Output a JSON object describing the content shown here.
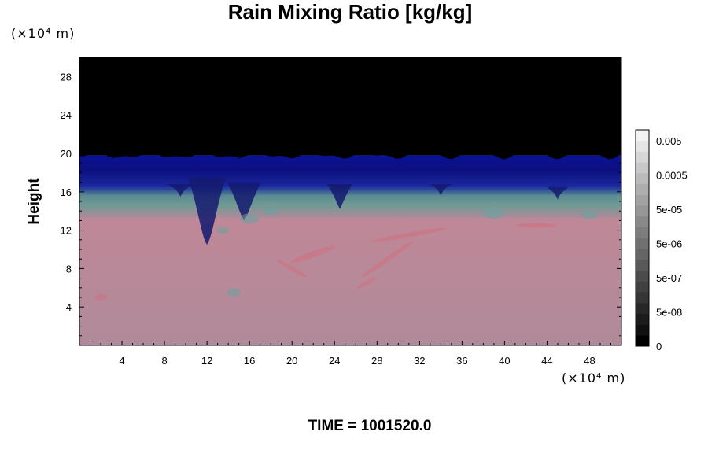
{
  "chart_data": {
    "type": "heatmap",
    "title": "Rain Mixing Ratio [kg/kg]",
    "ylabel": "Height",
    "xlabel": "",
    "x_unit": "(×10⁴ m)",
    "y_unit": "(×10⁴ m)",
    "xlim": [
      0,
      51
    ],
    "ylim": [
      0,
      30
    ],
    "x_ticks": [
      4,
      8,
      12,
      16,
      20,
      24,
      28,
      32,
      36,
      40,
      44,
      48
    ],
    "y_ticks": [
      4,
      8,
      12,
      16,
      20,
      24,
      28
    ],
    "colorbar": {
      "labels": [
        "0.005",
        "0.0005",
        "5e-05",
        "5e-06",
        "5e-07",
        "5e-08",
        "0"
      ],
      "colors": [
        "#000000",
        "#101010",
        "#1c1c1c",
        "#282828",
        "#353535",
        "#404040",
        "#4c4c4c",
        "#595959",
        "#656565",
        "#717171",
        "#7d7d7d",
        "#898989",
        "#969696",
        "#a2a2a2",
        "#aeaeae",
        "#bbbbbb",
        "#c8c8c8",
        "#d6d6d6",
        "#e4e4e4",
        "#f2f2f2"
      ]
    },
    "layers": [
      {
        "name": "upper",
        "y_range": [
          19.8,
          30
        ],
        "color": "#000000"
      },
      {
        "name": "blue",
        "y_range": [
          16.4,
          19.8
        ],
        "color": "#0a0f8c"
      },
      {
        "name": "transition",
        "y_range": [
          13.2,
          16.4
        ],
        "color": "#5f8a8e"
      },
      {
        "name": "lower",
        "y_range": [
          0,
          13.2
        ],
        "color": "#b88a9a"
      }
    ],
    "footer": "TIME = 1001520.0"
  }
}
